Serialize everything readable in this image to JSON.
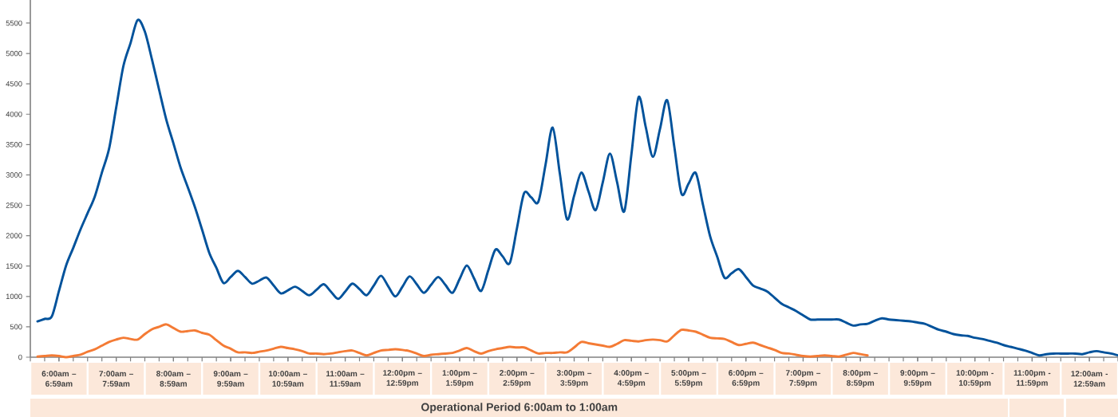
{
  "chart_data": {
    "type": "line",
    "xlabel": "Operational Period 6:00am to 1:00am",
    "ylim": [
      0,
      5880
    ],
    "yticks": [
      0,
      500,
      1000,
      1500,
      2000,
      2500,
      3000,
      3500,
      4000,
      4500,
      5000,
      5500
    ],
    "categories": [
      null,
      null,
      null,
      null,
      "6:00am – 6:59am",
      null,
      null,
      null,
      null,
      null,
      null,
      null,
      "7:00am – 7:59am",
      null,
      null,
      null,
      null,
      null,
      null,
      null,
      "8:00am – 8:59am",
      null,
      null,
      null,
      null,
      null,
      null,
      null,
      "9:00am – 9:59am",
      null,
      null,
      null,
      null,
      null,
      null,
      null,
      "10:00am – 10:59am",
      null,
      null,
      null,
      null,
      null,
      null,
      null,
      "11:00am – 11:59am",
      null,
      null,
      null,
      null,
      null,
      null,
      null,
      "12:00pm – 12:59pm",
      null,
      null,
      null,
      null,
      null,
      null,
      null,
      "1:00pm – 1:59pm",
      null,
      null,
      null,
      null,
      null,
      null,
      null,
      "2:00pm – 2:59pm",
      null,
      null,
      null,
      null,
      null,
      null,
      null,
      "3:00pm – 3:59pm",
      null,
      null,
      null,
      null,
      null,
      null,
      null,
      "4:00pm – 4:59pm",
      null,
      null,
      null,
      null,
      null,
      null,
      null,
      "5:00pm – 5:59pm",
      null,
      null,
      null,
      null,
      null,
      null,
      null,
      "6:00pm – 6:59pm",
      null,
      null,
      null,
      null,
      null,
      null,
      null,
      "7:00pm – 7:59pm",
      null,
      null,
      null,
      null,
      null,
      null,
      null,
      "8:00pm – 8:59pm",
      null,
      null,
      null,
      null,
      null,
      null,
      null,
      "9:00pm – 9:59pm",
      null,
      null,
      null,
      null,
      null,
      null,
      null,
      "10:00pm - 10:59pm",
      null,
      null,
      null,
      null,
      null,
      null,
      null,
      "11:00pm - 11:59pm",
      null,
      null,
      null,
      null,
      null,
      null,
      null,
      "12:00am - 12:59am",
      null,
      null,
      null,
      null
    ],
    "series": [
      {
        "color": "#00529b",
        "values": [
          null,
          590,
          630,
          670,
          1090,
          1510,
          1800,
          2100,
          2370,
          2640,
          3040,
          3430,
          4110,
          4790,
          5170,
          5550,
          5360,
          4900,
          4400,
          3910,
          3520,
          3120,
          2800,
          2470,
          2100,
          1720,
          1470,
          1220,
          1320,
          1420,
          1320,
          1210,
          1260,
          1310,
          1180,
          1050,
          1100,
          1160,
          1090,
          1020,
          1110,
          1200,
          1080,
          960,
          1080,
          1210,
          1120,
          1020,
          1180,
          1340,
          1170,
          1000,
          1160,
          1330,
          1200,
          1060,
          1190,
          1320,
          1190,
          1060,
          1290,
          1510,
          1300,
          1090,
          1430,
          1770,
          1660,
          1550,
          2120,
          2700,
          2630,
          2560,
          3170,
          3780,
          3020,
          2270,
          2660,
          3040,
          2730,
          2420,
          2880,
          3350,
          2880,
          2400,
          3340,
          4280,
          3790,
          3300,
          3760,
          4230,
          3460,
          2690,
          2860,
          3030,
          2510,
          1990,
          1650,
          1310,
          1380,
          1450,
          1320,
          1180,
          1130,
          1080,
          980,
          880,
          820,
          760,
          690,
          620,
          620,
          620,
          620,
          620,
          570,
          520,
          540,
          550,
          600,
          640,
          620,
          610,
          600,
          590,
          570,
          550,
          500,
          450,
          420,
          380,
          360,
          350,
          320,
          300,
          270,
          240,
          200,
          170,
          140,
          110,
          70,
          30,
          50,
          60,
          60,
          60,
          60,
          50,
          80,
          100,
          80,
          60,
          30
        ]
      },
      {
        "color": "#f47b35",
        "values": [
          null,
          10,
          20,
          30,
          20,
          0,
          20,
          40,
          90,
          130,
          190,
          250,
          290,
          320,
          300,
          290,
          380,
          460,
          500,
          540,
          480,
          420,
          430,
          440,
          400,
          370,
          280,
          190,
          140,
          80,
          80,
          70,
          90,
          110,
          140,
          170,
          150,
          130,
          100,
          60,
          60,
          50,
          60,
          80,
          100,
          110,
          70,
          30,
          70,
          110,
          120,
          130,
          120,
          100,
          60,
          20,
          40,
          50,
          60,
          70,
          110,
          150,
          100,
          60,
          100,
          130,
          150,
          170,
          160,
          160,
          110,
          60,
          70,
          70,
          80,
          80,
          160,
          250,
          230,
          210,
          190,
          170,
          220,
          280,
          270,
          260,
          280,
          290,
          280,
          260,
          360,
          450,
          440,
          420,
          370,
          320,
          310,
          300,
          250,
          200,
          220,
          240,
          200,
          160,
          120,
          70,
          60,
          40,
          20,
          10,
          20,
          30,
          20,
          10,
          40,
          70,
          50,
          30,
          null,
          null,
          null,
          null,
          null,
          null,
          null,
          null,
          null,
          null,
          null,
          null,
          null,
          null,
          null,
          null,
          null,
          null,
          null,
          null,
          null,
          null,
          null,
          null,
          null,
          null,
          null,
          null,
          null,
          null,
          null,
          null,
          null,
          null,
          null
        ]
      }
    ]
  }
}
